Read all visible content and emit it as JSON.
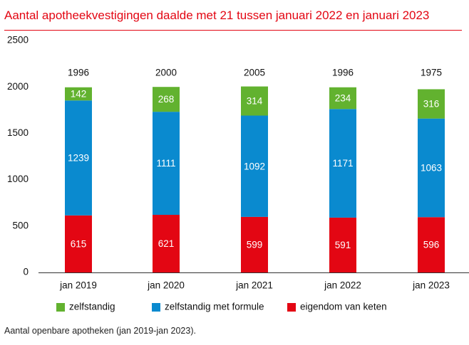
{
  "header": {
    "title": "Aantal apotheekvestigingen daalde met 21 tussen januari 2022 en januari 2023"
  },
  "footnote": "Aantal openbare apotheken (jan 2019-jan 2023).",
  "colors": {
    "title": "#e30613",
    "zelfstandig": "#62b22f",
    "zelfstandig_met_formule": "#0a8acf",
    "eigendom_van_keten": "#e30613"
  },
  "chart_data": {
    "type": "bar",
    "stacked": true,
    "title": "",
    "xlabel": "",
    "ylabel": "",
    "categories": [
      "jan 2019",
      "jan 2020",
      "jan 2021",
      "jan 2022",
      "jan 2023"
    ],
    "series": [
      {
        "name": "eigendom van keten",
        "color": "#e30613",
        "values": [
          615,
          621,
          599,
          591,
          596
        ]
      },
      {
        "name": "zelfstandig met formule",
        "color": "#0a8acf",
        "values": [
          1239,
          1111,
          1092,
          1171,
          1063
        ]
      },
      {
        "name": "zelfstandig",
        "color": "#62b22f",
        "values": [
          142,
          268,
          314,
          234,
          316
        ]
      }
    ],
    "totals": [
      1996,
      2000,
      2005,
      1996,
      1975
    ],
    "ylim": [
      0,
      2500
    ],
    "yticks": [
      0,
      500,
      1000,
      1500,
      2000,
      2500
    ],
    "grid": false,
    "legend": {
      "position": "bottom",
      "items": [
        {
          "label": "zelfstandig",
          "color": "#62b22f"
        },
        {
          "label": "zelfstandig met formule",
          "color": "#0a8acf"
        },
        {
          "label": "eigendom van keten",
          "color": "#e30613"
        }
      ]
    }
  }
}
